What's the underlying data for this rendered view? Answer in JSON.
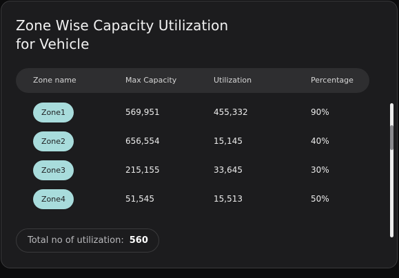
{
  "card": {
    "title_line1": "Zone Wise Capacity Utilization",
    "title_line2": "for Vehicle"
  },
  "table": {
    "headers": {
      "zone": "Zone name",
      "max_capacity": "Max Capacity",
      "utilization": "Utilization",
      "percentage": "Percentage"
    },
    "rows": [
      {
        "zone": "Zone1",
        "max_capacity": "569,951",
        "utilization": "455,332",
        "percentage": "90%"
      },
      {
        "zone": "Zone2",
        "max_capacity": "656,554",
        "utilization": "15,145",
        "percentage": "40%"
      },
      {
        "zone": "Zone3",
        "max_capacity": "215,155",
        "utilization": "33,645",
        "percentage": "30%"
      },
      {
        "zone": "Zone4",
        "max_capacity": "51,545",
        "utilization": "15,513",
        "percentage": "50%"
      }
    ]
  },
  "total": {
    "label": "Total no of utilization:",
    "value": "560"
  },
  "colors": {
    "card_background": "#1c1c1e",
    "header_background": "#2e2e30",
    "zone_pill": "#a8dcdc"
  }
}
